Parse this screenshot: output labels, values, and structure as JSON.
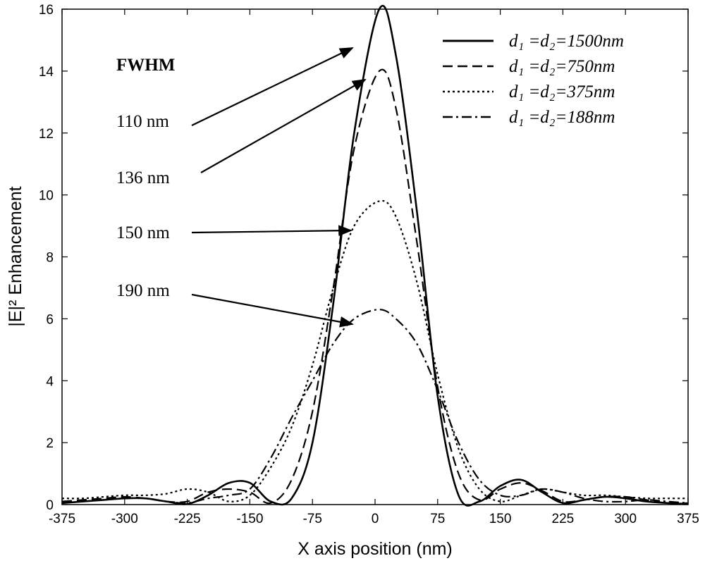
{
  "chart_data": {
    "type": "line",
    "xlabel": "X axis position (nm)",
    "ylabel": "|E|² Enhancement",
    "xlim": [
      -375,
      375
    ],
    "ylim": [
      0,
      16
    ],
    "xticks": [
      -375,
      -300,
      -225,
      -150,
      -75,
      0,
      75,
      150,
      225,
      300,
      375
    ],
    "yticks": [
      0,
      2,
      4,
      6,
      8,
      10,
      12,
      14,
      16
    ],
    "legend": "upper right",
    "x": [
      -375,
      -350,
      -325,
      -300,
      -275,
      -250,
      -225,
      -200,
      -175,
      -150,
      -125,
      -100,
      -75,
      -50,
      -25,
      5,
      25,
      50,
      75,
      100,
      125,
      150,
      175,
      200,
      225,
      250,
      275,
      300,
      325,
      350,
      375
    ],
    "series": [
      {
        "name": "d₁ =d₂=1500nm",
        "color": "#000000",
        "linestyle": "solid",
        "values": [
          0.05,
          0.1,
          0.15,
          0.2,
          0.2,
          0.1,
          0.02,
          0.3,
          0.7,
          0.7,
          0.1,
          0.2,
          2.0,
          6.5,
          12.0,
          16.0,
          14.5,
          9.5,
          3.5,
          0.3,
          0.1,
          0.6,
          0.8,
          0.4,
          0.05,
          0.15,
          0.25,
          0.2,
          0.1,
          0.05,
          0.02
        ]
      },
      {
        "name": "d₁ =d₂=750nm",
        "color": "#000000",
        "linestyle": "dashed",
        "values": [
          0.1,
          0.15,
          0.2,
          0.25,
          0.2,
          0.1,
          0.1,
          0.4,
          0.5,
          0.4,
          0.05,
          0.8,
          3.0,
          7.0,
          11.5,
          14.0,
          12.8,
          8.5,
          3.8,
          1.0,
          0.15,
          0.5,
          0.7,
          0.45,
          0.1,
          0.15,
          0.25,
          0.25,
          0.15,
          0.05,
          0.05
        ]
      },
      {
        "name": "d₁ =d₂=375nm",
        "color": "#000000",
        "linestyle": "dotted",
        "values": [
          0.2,
          0.2,
          0.25,
          0.3,
          0.3,
          0.35,
          0.5,
          0.4,
          0.1,
          0.3,
          1.2,
          2.5,
          4.5,
          7.0,
          9.0,
          9.8,
          9.3,
          7.2,
          4.2,
          1.8,
          0.5,
          0.1,
          0.3,
          0.5,
          0.4,
          0.3,
          0.3,
          0.25,
          0.2,
          0.2,
          0.2
        ]
      },
      {
        "name": "d₁ =d₂=188nm",
        "color": "#000000",
        "linestyle": "dashdot",
        "values": [
          0.05,
          0.1,
          0.15,
          0.2,
          0.2,
          0.1,
          0.05,
          0.2,
          0.3,
          0.5,
          1.5,
          2.8,
          4.0,
          5.2,
          6.0,
          6.3,
          6.0,
          5.2,
          3.7,
          2.0,
          0.8,
          0.3,
          0.3,
          0.5,
          0.4,
          0.2,
          0.1,
          0.1,
          0.15,
          0.1,
          0.05
        ]
      }
    ],
    "annotations": [
      "FWHM",
      "110 nm",
      "136 nm",
      "150 nm",
      "190 nm"
    ]
  }
}
